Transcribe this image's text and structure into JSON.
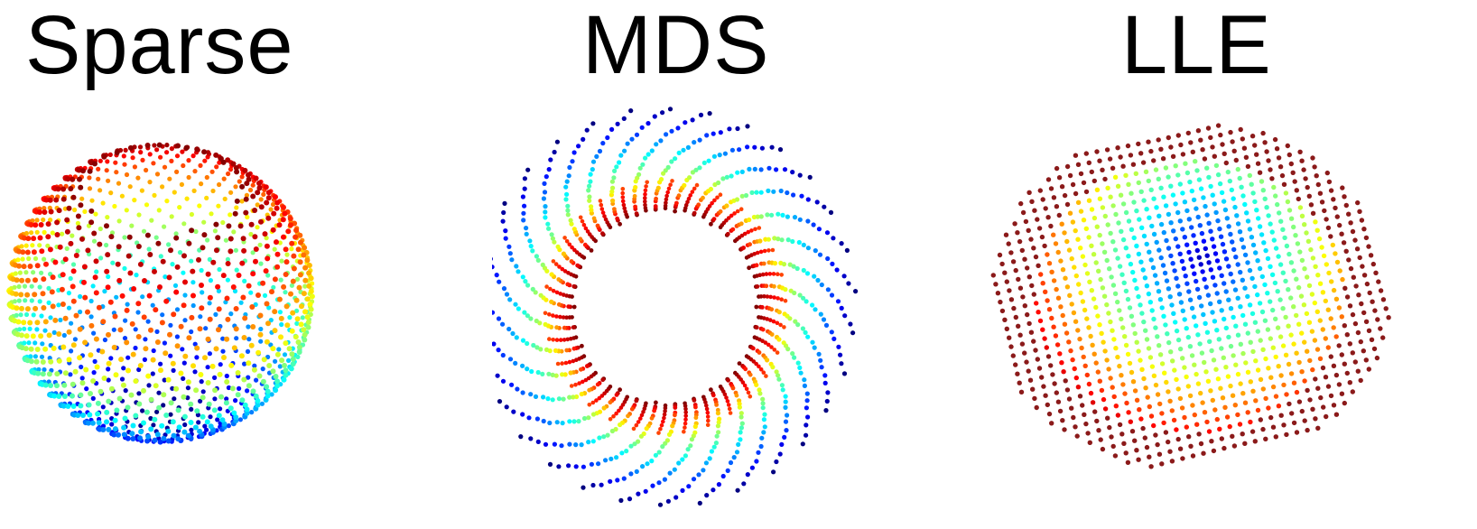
{
  "chart_data": [
    {
      "type": "scatter",
      "title": "Sparse",
      "embedding": "sphere-with-top-opening",
      "point_count_approx": 900,
      "colormap": "jet",
      "xlabel": "",
      "ylabel": "",
      "axes_visible": false,
      "grid": false,
      "xlim": [
        -1,
        1
      ],
      "ylim": [
        -1,
        1
      ],
      "color_value_range": [
        0,
        1
      ],
      "description_points": {
        "top_opening_center": [
          0,
          0.62
        ],
        "color_at_rim": 1.0,
        "color_at_bottom": 0.0
      }
    },
    {
      "type": "scatter",
      "title": "MDS",
      "embedding": "annulus-with-spiral-arms",
      "point_count_approx": 900,
      "colormap": "jet",
      "xlabel": "",
      "ylabel": "",
      "axes_visible": false,
      "grid": false,
      "xlim": [
        -1,
        1
      ],
      "ylim": [
        -1,
        1
      ],
      "color_value_range": [
        0,
        1
      ],
      "description_points": {
        "inner_radius": 0.47,
        "outer_radius": 1.0,
        "arm_count": 28,
        "color_at_inner": 1.0,
        "color_at_outer": 0.0
      }
    },
    {
      "type": "scatter",
      "title": "LLE",
      "embedding": "distorted-grid-with-center-hotspot",
      "point_count_approx": 1000,
      "colormap": "jet",
      "xlabel": "",
      "ylabel": "",
      "axes_visible": false,
      "grid": false,
      "xlim": [
        -1,
        1
      ],
      "ylim": [
        -1,
        1
      ],
      "color_value_range": [
        0,
        1
      ],
      "description_points": {
        "hotspot_center": [
          0.3,
          0.25
        ],
        "color_at_hotspot": 0.0,
        "color_at_edge": 1.0
      }
    }
  ]
}
